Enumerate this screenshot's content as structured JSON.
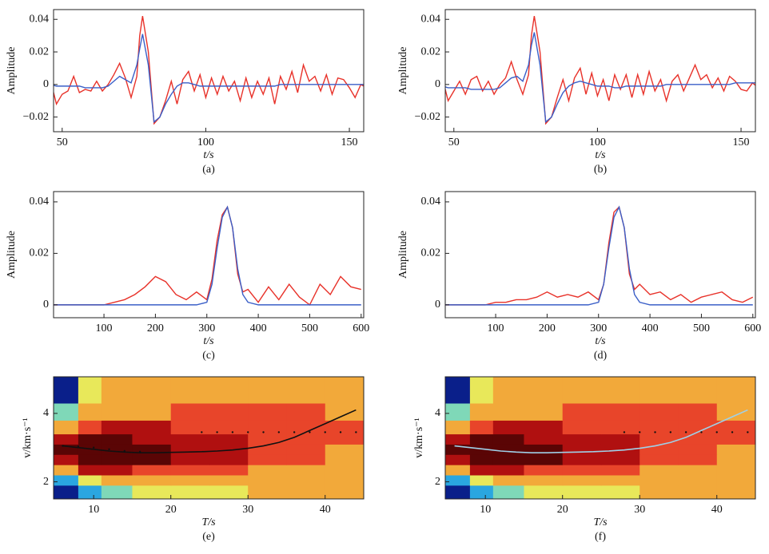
{
  "chart_data": [
    {
      "type": "line",
      "xlabel": "t/s",
      "ylabel": "Amplitude",
      "caption": "(a)",
      "xlim": [
        47,
        155
      ],
      "ylim": [
        -0.029,
        0.046
      ],
      "xticks": [
        50,
        100,
        150
      ],
      "yticks": [
        {
          "value": -0.02,
          "label": "−0.02"
        },
        0,
        0.02,
        0.04
      ],
      "x": [
        46,
        48,
        50,
        52,
        54,
        56,
        58,
        60,
        62,
        64,
        66,
        68,
        70,
        72,
        74,
        76,
        77,
        78,
        80,
        82,
        84,
        86,
        88,
        90,
        92,
        94,
        96,
        98,
        100,
        102,
        104,
        106,
        108,
        110,
        112,
        114,
        116,
        118,
        120,
        122,
        124,
        126,
        128,
        130,
        132,
        134,
        136,
        138,
        140,
        142,
        144,
        146,
        148,
        150,
        152,
        154,
        156
      ],
      "series": [
        {
          "color": "#e8322a",
          "values": [
            0.002,
            -0.012,
            -0.006,
            -0.004,
            0.005,
            -0.005,
            -0.003,
            -0.004,
            0.002,
            -0.004,
            0,
            0.006,
            0.013,
            0.004,
            -0.008,
            0.005,
            0.03,
            0.042,
            0.02,
            -0.024,
            -0.02,
            -0.01,
            0.002,
            -0.012,
            0.003,
            0.008,
            -0.004,
            0.006,
            -0.008,
            0.004,
            -0.006,
            0.005,
            -0.004,
            0.002,
            -0.01,
            0.004,
            -0.008,
            0.002,
            -0.006,
            0.004,
            -0.012,
            0.005,
            -0.003,
            0.008,
            -0.005,
            0.012,
            0.002,
            0.005,
            -0.004,
            0.006,
            -0.006,
            0.004,
            0.003,
            -0.002,
            -0.008,
            0,
            -0.002
          ]
        },
        {
          "color": "#3a5fc8",
          "values": [
            0,
            -0.001,
            -0.001,
            -0.001,
            -0.001,
            -0.001,
            -0.002,
            -0.002,
            -0.002,
            -0.002,
            -0.001,
            0.002,
            0.005,
            0.003,
            0.001,
            0.012,
            0.022,
            0.031,
            0.012,
            -0.023,
            -0.02,
            -0.012,
            -0.006,
            -0.001,
            0.001,
            0.001,
            0,
            -0.001,
            -0.001,
            -0.001,
            -0.001,
            -0.001,
            -0.001,
            -0.001,
            -0.001,
            -0.001,
            -0.001,
            -0.001,
            -0.001,
            -0.001,
            -0.001,
            0,
            0,
            0,
            0,
            0,
            0,
            0,
            0,
            0,
            0,
            0,
            0,
            0,
            0,
            0,
            0
          ]
        }
      ]
    },
    {
      "type": "line",
      "xlabel": "t/s",
      "ylabel": "Amplitude",
      "caption": "(b)",
      "xlim": [
        47,
        155
      ],
      "ylim": [
        -0.029,
        0.046
      ],
      "xticks": [
        50,
        100,
        150
      ],
      "yticks": [
        {
          "value": -0.02,
          "label": "−0.02"
        },
        0,
        0.02,
        0.04
      ],
      "x": [
        46,
        48,
        50,
        52,
        54,
        56,
        58,
        60,
        62,
        64,
        66,
        68,
        70,
        72,
        74,
        76,
        77,
        78,
        80,
        82,
        84,
        86,
        88,
        90,
        92,
        94,
        96,
        98,
        100,
        102,
        104,
        106,
        108,
        110,
        112,
        114,
        116,
        118,
        120,
        122,
        124,
        126,
        128,
        130,
        132,
        134,
        136,
        138,
        140,
        142,
        144,
        146,
        148,
        150,
        152,
        154,
        156
      ],
      "series": [
        {
          "color": "#e8322a",
          "values": [
            0.004,
            -0.01,
            -0.004,
            0.002,
            -0.006,
            0.003,
            0.005,
            -0.004,
            0.002,
            -0.006,
            0,
            0.004,
            0.014,
            0.003,
            -0.006,
            0.006,
            0.03,
            0.042,
            0.02,
            -0.024,
            -0.02,
            -0.008,
            0.003,
            -0.01,
            0.004,
            0.01,
            -0.006,
            0.007,
            -0.007,
            0.003,
            -0.01,
            0.006,
            -0.003,
            0.006,
            -0.008,
            0.006,
            -0.006,
            0.008,
            -0.004,
            0.003,
            -0.01,
            0.002,
            0.006,
            -0.004,
            0.004,
            0.012,
            0.003,
            0.006,
            -0.002,
            0.004,
            -0.004,
            0.005,
            0.002,
            -0.003,
            -0.004,
            0.001,
            -0.002
          ]
        },
        {
          "color": "#3a5fc8",
          "values": [
            -0.001,
            -0.002,
            -0.002,
            -0.002,
            -0.002,
            -0.003,
            -0.003,
            -0.003,
            -0.003,
            -0.003,
            -0.002,
            0.001,
            0.004,
            0.005,
            0.002,
            0.012,
            0.024,
            0.032,
            0.012,
            -0.023,
            -0.02,
            -0.012,
            -0.005,
            -0.001,
            0.001,
            0.002,
            0.001,
            0,
            -0.001,
            -0.001,
            -0.001,
            -0.002,
            -0.002,
            -0.001,
            -0.001,
            -0.001,
            -0.001,
            -0.001,
            -0.001,
            -0.001,
            0,
            0,
            0,
            0,
            0,
            0,
            0,
            0,
            0,
            0,
            0,
            0,
            0.001,
            0.001,
            0.001,
            0.001,
            0.001
          ]
        }
      ]
    },
    {
      "type": "line",
      "xlabel": "t/s",
      "ylabel": "Amplitude",
      "caption": "(c)",
      "xlim": [
        2,
        605
      ],
      "ylim": [
        -0.005,
        0.044
      ],
      "xticks": [
        100,
        200,
        300,
        400,
        500,
        600
      ],
      "yticks": [
        0,
        0.02,
        0.04
      ],
      "x": [
        0,
        20,
        40,
        60,
        80,
        100,
        120,
        140,
        160,
        180,
        200,
        220,
        240,
        260,
        280,
        300,
        310,
        320,
        330,
        340,
        350,
        360,
        370,
        380,
        400,
        420,
        440,
        460,
        480,
        500,
        520,
        540,
        560,
        580,
        600
      ],
      "series": [
        {
          "color": "#e8322a",
          "values": [
            0,
            0,
            0,
            0,
            0,
            0,
            0.001,
            0.002,
            0.004,
            0.007,
            0.011,
            0.009,
            0.004,
            0.002,
            0.005,
            0.002,
            0.01,
            0.025,
            0.035,
            0.038,
            0.03,
            0.012,
            0.005,
            0.006,
            0.001,
            0.007,
            0.002,
            0.008,
            0.003,
            0,
            0.008,
            0.004,
            0.011,
            0.007,
            0.006
          ]
        },
        {
          "color": "#3a5fc8",
          "values": [
            0,
            0,
            0,
            0,
            0,
            0,
            0,
            0,
            0,
            0,
            0,
            0,
            0,
            0,
            0,
            0.001,
            0.008,
            0.022,
            0.034,
            0.038,
            0.03,
            0.014,
            0.004,
            0.001,
            0,
            0,
            0,
            0,
            0,
            0,
            0,
            0,
            0,
            0,
            0
          ]
        }
      ]
    },
    {
      "type": "line",
      "xlabel": "t/s",
      "ylabel": "Amplitude",
      "caption": "(d)",
      "xlim": [
        2,
        605
      ],
      "ylim": [
        -0.005,
        0.044
      ],
      "xticks": [
        100,
        200,
        300,
        400,
        500,
        600
      ],
      "yticks": [
        0,
        0.02,
        0.04
      ],
      "x": [
        0,
        20,
        40,
        60,
        80,
        100,
        120,
        140,
        160,
        180,
        200,
        220,
        240,
        260,
        280,
        300,
        310,
        320,
        330,
        340,
        350,
        360,
        370,
        380,
        400,
        420,
        440,
        460,
        480,
        500,
        520,
        540,
        560,
        580,
        600
      ],
      "series": [
        {
          "color": "#e8322a",
          "values": [
            0,
            0,
            0,
            0,
            0,
            0.001,
            0.001,
            0.002,
            0.002,
            0.003,
            0.005,
            0.003,
            0.004,
            0.003,
            0.005,
            0.002,
            0.008,
            0.024,
            0.036,
            0.038,
            0.03,
            0.012,
            0.006,
            0.008,
            0.004,
            0.005,
            0.002,
            0.004,
            0.001,
            0.003,
            0.004,
            0.005,
            0.002,
            0.001,
            0.003
          ]
        },
        {
          "color": "#3a5fc8",
          "values": [
            0,
            0,
            0,
            0,
            0,
            0,
            0,
            0,
            0,
            0,
            0,
            0,
            0,
            0,
            0,
            0.001,
            0.008,
            0.022,
            0.034,
            0.038,
            0.03,
            0.014,
            0.004,
            0.001,
            0,
            0,
            0,
            0,
            0,
            0,
            0,
            0,
            0,
            0,
            0
          ]
        }
      ]
    },
    {
      "type": "heatmap",
      "xlabel": "T/s",
      "ylabel": "v/km·s⁻¹",
      "caption": "(e)",
      "xlim": [
        4.8,
        45
      ],
      "ylim": [
        1.5,
        5.07
      ],
      "xticks": [
        10,
        20,
        30,
        40
      ],
      "yticks": [
        2,
        4
      ],
      "heatmap": {
        "xbins": [
          4.8,
          8,
          11,
          15,
          20,
          25,
          30,
          35,
          40,
          45
        ],
        "ybins": [
          1.5,
          1.9,
          2.2,
          2.5,
          2.8,
          3.1,
          3.4,
          3.8,
          4.3,
          5.07
        ],
        "colors": [
          "#0a1f8a",
          "#2aa6e0",
          "#7fd8b8",
          "#e8e85a",
          "#f2a93a",
          "#e8452a",
          "#b01010",
          "#5a0505"
        ],
        "z": [
          [
            0.05,
            0.2,
            0.35,
            0.4,
            0.4,
            0.45,
            0.5,
            0.5,
            0.5
          ],
          [
            0.15,
            0.4,
            0.5,
            0.55,
            0.55,
            0.55,
            0.55,
            0.55,
            0.55
          ],
          [
            0.5,
            0.75,
            0.75,
            0.72,
            0.7,
            0.65,
            0.62,
            0.6,
            0.58
          ],
          [
            0.85,
            0.95,
            0.92,
            0.88,
            0.82,
            0.75,
            0.7,
            0.65,
            0.6
          ],
          [
            0.95,
            1,
            0.97,
            0.92,
            0.86,
            0.8,
            0.74,
            0.68,
            0.62
          ],
          [
            0.85,
            0.93,
            0.9,
            0.86,
            0.82,
            0.78,
            0.73,
            0.68,
            0.63
          ],
          [
            0.55,
            0.72,
            0.75,
            0.75,
            0.74,
            0.72,
            0.7,
            0.67,
            0.63
          ],
          [
            0.25,
            0.5,
            0.6,
            0.62,
            0.63,
            0.64,
            0.64,
            0.63,
            0.62
          ],
          [
            0.05,
            0.4,
            0.5,
            0.55,
            0.57,
            0.58,
            0.6,
            0.6,
            0.6
          ]
        ]
      },
      "series": [
        {
          "color": "#111111",
          "style": "solid",
          "x": [
            6,
            8,
            10,
            12,
            14,
            16,
            18,
            20,
            22,
            24,
            26,
            28,
            30,
            32,
            34,
            36,
            38,
            40,
            42,
            44
          ],
          "values": [
            3.05,
            3.0,
            2.95,
            2.9,
            2.87,
            2.85,
            2.85,
            2.86,
            2.87,
            2.88,
            2.9,
            2.93,
            2.98,
            3.05,
            3.15,
            3.3,
            3.5,
            3.7,
            3.9,
            4.1
          ]
        },
        {
          "color": "#111111",
          "style": "dotted",
          "x": [
            6,
            8,
            10,
            12,
            14,
            16,
            24,
            26,
            28,
            30,
            32,
            34,
            36,
            38,
            40,
            42,
            44
          ],
          "values": [
            3.05,
            3.03,
            3.0,
            2.95,
            2.9,
            2.88,
            3.45,
            3.45,
            3.45,
            3.45,
            3.45,
            3.45,
            3.45,
            3.45,
            3.45,
            3.45,
            3.45
          ]
        }
      ]
    },
    {
      "type": "heatmap",
      "xlabel": "T/s",
      "ylabel": "v/km·s⁻¹",
      "caption": "(f)",
      "xlim": [
        4.8,
        45
      ],
      "ylim": [
        1.5,
        5.07
      ],
      "xticks": [
        10,
        20,
        30,
        40
      ],
      "yticks": [
        2,
        4
      ],
      "heatmap": {
        "xbins": [
          4.8,
          8,
          11,
          15,
          20,
          25,
          30,
          35,
          40,
          45
        ],
        "ybins": [
          1.5,
          1.9,
          2.2,
          2.5,
          2.8,
          3.1,
          3.4,
          3.8,
          4.3,
          5.07
        ],
        "colors": [
          "#0a1f8a",
          "#2aa6e0",
          "#7fd8b8",
          "#e8e85a",
          "#f2a93a",
          "#e8452a",
          "#b01010",
          "#5a0505"
        ],
        "z": [
          [
            0.05,
            0.2,
            0.35,
            0.4,
            0.4,
            0.45,
            0.5,
            0.5,
            0.5
          ],
          [
            0.15,
            0.4,
            0.5,
            0.55,
            0.55,
            0.55,
            0.55,
            0.55,
            0.55
          ],
          [
            0.5,
            0.75,
            0.75,
            0.72,
            0.7,
            0.65,
            0.62,
            0.6,
            0.58
          ],
          [
            0.85,
            0.95,
            0.92,
            0.88,
            0.82,
            0.75,
            0.7,
            0.65,
            0.6
          ],
          [
            0.95,
            1,
            0.97,
            0.92,
            0.86,
            0.8,
            0.74,
            0.68,
            0.62
          ],
          [
            0.85,
            0.93,
            0.9,
            0.86,
            0.82,
            0.78,
            0.73,
            0.68,
            0.63
          ],
          [
            0.55,
            0.72,
            0.75,
            0.75,
            0.74,
            0.72,
            0.7,
            0.67,
            0.63
          ],
          [
            0.25,
            0.5,
            0.6,
            0.62,
            0.63,
            0.64,
            0.64,
            0.63,
            0.62
          ],
          [
            0.05,
            0.4,
            0.5,
            0.55,
            0.57,
            0.58,
            0.6,
            0.6,
            0.6
          ]
        ]
      },
      "series": [
        {
          "color": "#9fd0e8",
          "style": "solid",
          "x": [
            6,
            8,
            10,
            12,
            14,
            16,
            18,
            20,
            22,
            24,
            26,
            28,
            30,
            32,
            34,
            36,
            38,
            40,
            42,
            44
          ],
          "values": [
            3.05,
            3.0,
            2.95,
            2.9,
            2.87,
            2.85,
            2.85,
            2.86,
            2.87,
            2.88,
            2.9,
            2.93,
            2.98,
            3.05,
            3.15,
            3.3,
            3.5,
            3.7,
            3.9,
            4.1
          ]
        },
        {
          "color": "#111111",
          "style": "dotted",
          "x": [
            28,
            30,
            32,
            34,
            36,
            38,
            40,
            42,
            44
          ],
          "values": [
            3.45,
            3.45,
            3.45,
            3.45,
            3.45,
            3.45,
            3.45,
            3.45,
            3.45
          ]
        }
      ]
    }
  ]
}
